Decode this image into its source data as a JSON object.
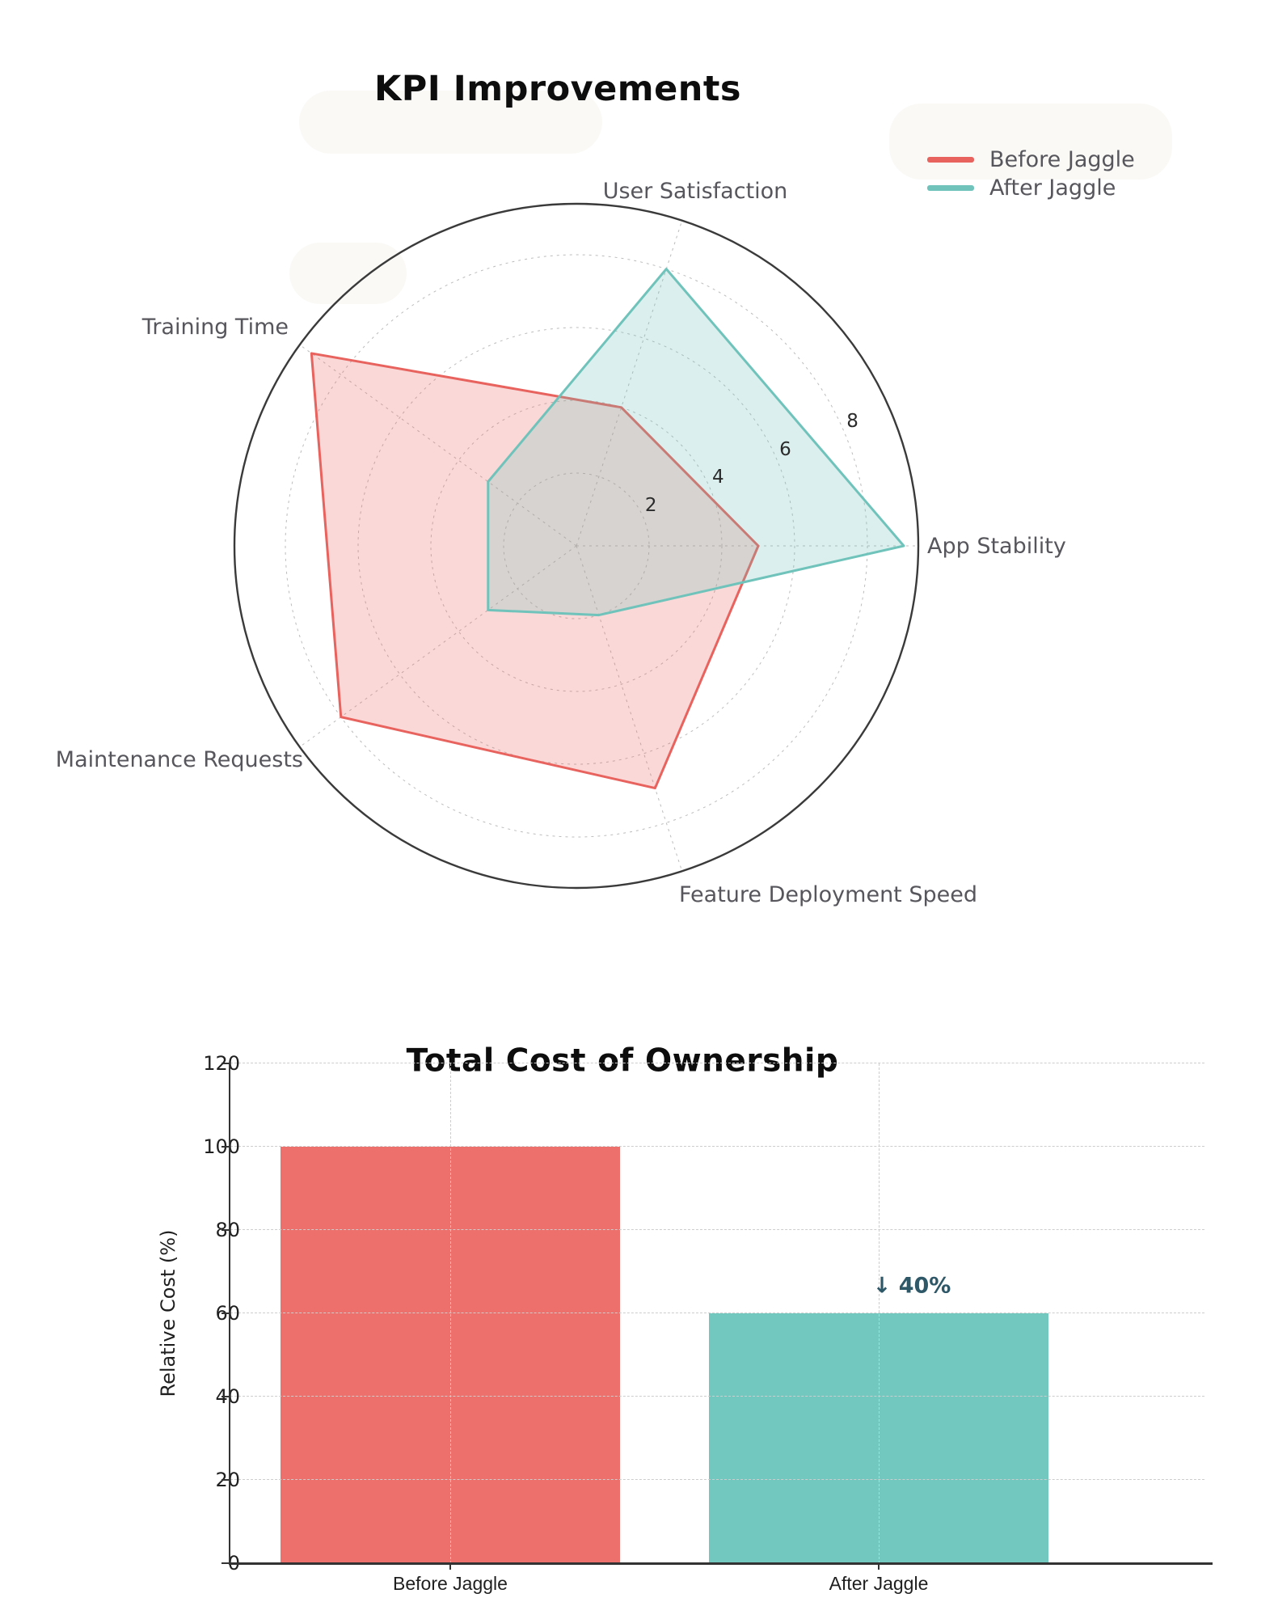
{
  "radar": {
    "title": "KPI Improvements",
    "legend": [
      "Before Jaggle",
      "After Jaggle"
    ]
  },
  "tco": {
    "title": "Total Cost of Ownership",
    "ylabel": "Relative Cost (%)",
    "annotation_text": "↓ 40%"
  },
  "chart_data": [
    {
      "type": "radar",
      "title": "KPI Improvements",
      "categories": [
        "App Stability",
        "User Satisfaction",
        "Training Time",
        "Maintenance Requests",
        "Feature Deployment Speed"
      ],
      "angles_deg": [
        0,
        72,
        144,
        216,
        288
      ],
      "r_ticks": [
        2,
        4,
        6,
        8
      ],
      "r_max": 9.4,
      "grid": "dashed",
      "legend_position": "top-right",
      "series": [
        {
          "name": "Before Jaggle",
          "color": "#e8625e",
          "fill": "rgba(232,98,94,0.25)",
          "values": [
            5,
            4,
            9,
            8,
            7
          ]
        },
        {
          "name": "After Jaggle",
          "color": "#6fc3bb",
          "fill": "rgba(111,195,187,0.25)",
          "values": [
            9,
            8,
            3,
            3,
            2
          ]
        }
      ]
    },
    {
      "type": "bar",
      "title": "Total Cost of Ownership",
      "xlabel": "",
      "ylabel": "Relative Cost (%)",
      "categories": [
        "Before Jaggle",
        "After Jaggle"
      ],
      "values": [
        100,
        60
      ],
      "bar_colors": [
        "#ed706c",
        "#72c7be"
      ],
      "yticks": [
        0,
        20,
        40,
        60,
        80,
        100,
        120
      ],
      "ylim": [
        0,
        120
      ],
      "grid": "dashed",
      "annotation": {
        "text": "↓ 40%",
        "target": "After Jaggle",
        "color": "#2e5767"
      }
    }
  ]
}
